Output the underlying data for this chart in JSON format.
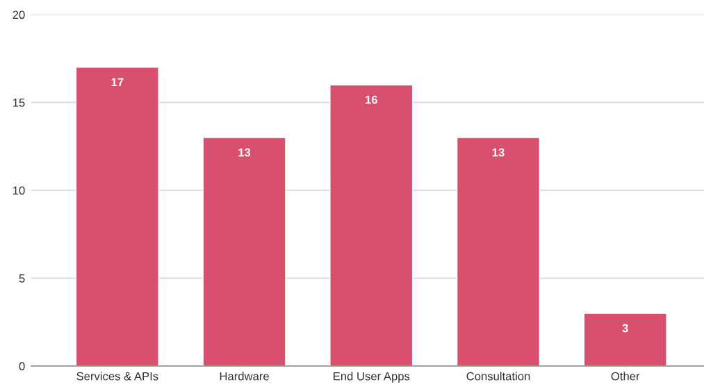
{
  "chart_data": {
    "type": "bar",
    "categories": [
      "Services & APIs",
      "Hardware",
      "End User Apps",
      "Consultation",
      "Other"
    ],
    "values": [
      17,
      13,
      16,
      13,
      3
    ],
    "color": "#d9506f",
    "ylim": [
      0,
      20
    ],
    "yticks": [
      0,
      5,
      10,
      15,
      20
    ],
    "grid": "y",
    "data_labels": true
  }
}
